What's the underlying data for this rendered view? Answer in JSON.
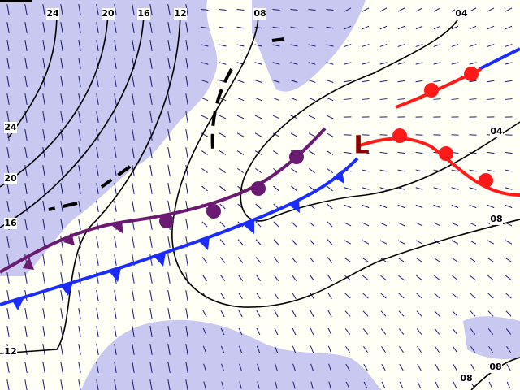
{
  "map": {
    "isobar_labels": [
      "24",
      "20",
      "16",
      "12",
      "08",
      "04",
      "24",
      "20",
      "16",
      "12",
      "04",
      "08",
      "08",
      "08"
    ],
    "low_label": "L"
  }
}
